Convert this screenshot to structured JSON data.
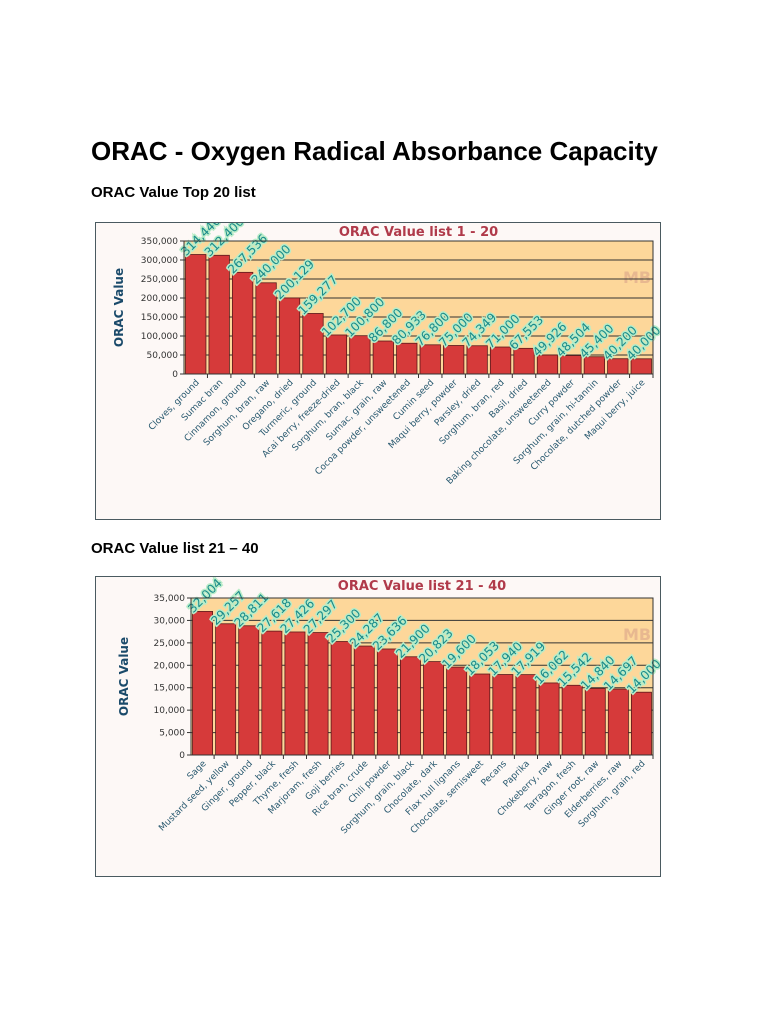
{
  "document": {
    "title": "ORAC - Oxygen Radical Absorbance Capacity",
    "section1": "ORAC Value Top 20 list",
    "section2": "ORAC Value list 21 – 40"
  },
  "colors": {
    "bar": "#d63a3a",
    "plot_bg": "#fdd79a",
    "title": "#b03a4a",
    "axis_label": "#1a4a6a",
    "data_label": "#1a8a8a",
    "data_label_bg": "#b8ecc8"
  },
  "chart_data": [
    {
      "type": "bar",
      "title": "ORAC Value list 1 - 20",
      "ylabel": "ORAC Value",
      "xlabel": "",
      "ylim": [
        0,
        350000
      ],
      "yticks": [
        0,
        50000,
        100000,
        150000,
        200000,
        250000,
        300000,
        350000
      ],
      "ytick_labels": [
        "0",
        "50,000",
        "100,000",
        "150,000",
        "200,000",
        "250,000",
        "300,000",
        "350,000"
      ],
      "grid": true,
      "watermark": "MB",
      "categories": [
        "Cloves, ground",
        "Sumac bran",
        "Cinnamon, ground",
        "Sorghum, bran, raw",
        "Oregano, dried",
        "Turmeric, ground",
        "Acai berry, freeze-dried",
        "Sorghum, bran, black",
        "Sumac, grain, raw",
        "Cocoa powder, unsweetened",
        "Cumin seed",
        "Maqui berry, powder",
        "Parsley, dried",
        "Sorghum, bran, red",
        "Basil, dried",
        "Baking chocolate, unsweetened",
        "Curry powder",
        "Sorghum, grain, hi-tannin",
        "Chocolate, dutched powder",
        "Maqui berry, juice"
      ],
      "values": [
        314446,
        312400,
        267536,
        240000,
        200129,
        159277,
        102700,
        100800,
        86800,
        80933,
        76800,
        75000,
        74349,
        71000,
        67553,
        49926,
        48504,
        45400,
        40200,
        40000
      ],
      "value_labels": [
        "314,446",
        "312,400",
        "267,536",
        "240,000",
        "200,129",
        "159,277",
        "102,700",
        "100,800",
        "86,800",
        "80,933",
        "76,800",
        "75,000",
        "74,349",
        "71,000",
        "67,553",
        "49,926",
        "48,504",
        "45,400",
        "40,200",
        "40,000"
      ]
    },
    {
      "type": "bar",
      "title": "ORAC Value list 21 - 40",
      "ylabel": "ORAC Value",
      "xlabel": "",
      "ylim": [
        0,
        35000
      ],
      "yticks": [
        0,
        5000,
        10000,
        15000,
        20000,
        25000,
        30000,
        35000
      ],
      "ytick_labels": [
        "0",
        "5,000",
        "10,000",
        "15,000",
        "20,000",
        "25,000",
        "30,000",
        "35,000"
      ],
      "grid": true,
      "watermark": "MB",
      "categories": [
        "Sage",
        "Mustard seed, yellow",
        "Ginger, ground",
        "Pepper, black",
        "Thyme, fresh",
        "Marjoram, fresh",
        "Goji berries",
        "Rice bran, crude",
        "Chili powder",
        "Sorghum, grain, black",
        "Chocolate, dark",
        "Flax hull lignans",
        "Chocolate, semisweet",
        "Pecans",
        "Paprika",
        "Chokeberry, raw",
        "Tarragon, fresh",
        "Ginger root, raw",
        "Elderberries, raw",
        "Sorghum, grain, red"
      ],
      "values": [
        32004,
        29257,
        28811,
        27618,
        27426,
        27297,
        25300,
        24287,
        23636,
        21900,
        20823,
        19600,
        18053,
        17940,
        17919,
        16062,
        15542,
        14840,
        14697,
        14000
      ],
      "value_labels": [
        "32,004",
        "29,257",
        "28,811",
        "27,618",
        "27,426",
        "27,297",
        "25,300",
        "24,287",
        "23,636",
        "21,900",
        "20,823",
        "19,600",
        "18,053",
        "17,940",
        "17,919",
        "16,062",
        "15,542",
        "14,840",
        "14,697",
        "14,000"
      ]
    }
  ]
}
